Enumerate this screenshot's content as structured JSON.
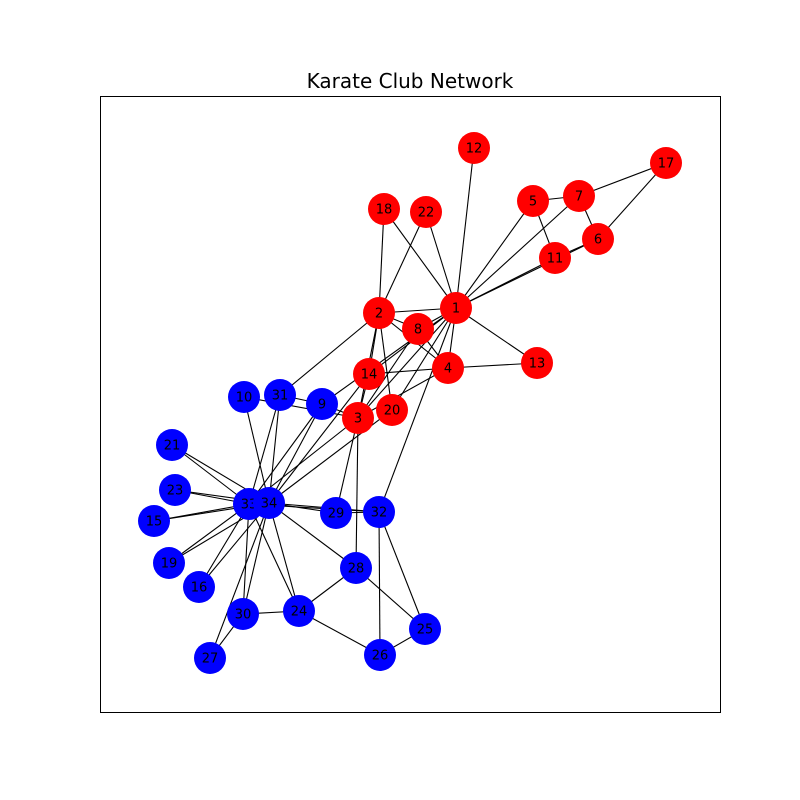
{
  "title": "Karate Club Network",
  "colors": {
    "group_a": "#ff0000",
    "group_b": "#0000ff",
    "edge": "#000000",
    "frame": "#000000",
    "background": "#ffffff"
  },
  "nodes": [
    {
      "id": "1",
      "group": "a"
    },
    {
      "id": "2",
      "group": "a"
    },
    {
      "id": "3",
      "group": "a"
    },
    {
      "id": "4",
      "group": "a"
    },
    {
      "id": "5",
      "group": "a"
    },
    {
      "id": "6",
      "group": "a"
    },
    {
      "id": "7",
      "group": "a"
    },
    {
      "id": "8",
      "group": "a"
    },
    {
      "id": "9",
      "group": "b"
    },
    {
      "id": "10",
      "group": "b"
    },
    {
      "id": "11",
      "group": "a"
    },
    {
      "id": "12",
      "group": "a"
    },
    {
      "id": "13",
      "group": "a"
    },
    {
      "id": "14",
      "group": "a"
    },
    {
      "id": "15",
      "group": "b"
    },
    {
      "id": "16",
      "group": "b"
    },
    {
      "id": "17",
      "group": "a"
    },
    {
      "id": "18",
      "group": "a"
    },
    {
      "id": "19",
      "group": "b"
    },
    {
      "id": "20",
      "group": "a"
    },
    {
      "id": "21",
      "group": "b"
    },
    {
      "id": "22",
      "group": "a"
    },
    {
      "id": "23",
      "group": "b"
    },
    {
      "id": "24",
      "group": "b"
    },
    {
      "id": "25",
      "group": "b"
    },
    {
      "id": "26",
      "group": "b"
    },
    {
      "id": "27",
      "group": "b"
    },
    {
      "id": "28",
      "group": "b"
    },
    {
      "id": "29",
      "group": "b"
    },
    {
      "id": "30",
      "group": "b"
    },
    {
      "id": "31",
      "group": "b"
    },
    {
      "id": "32",
      "group": "b"
    },
    {
      "id": "33",
      "group": "b"
    },
    {
      "id": "34",
      "group": "b"
    }
  ],
  "edges": [
    [
      "1",
      "2"
    ],
    [
      "1",
      "3"
    ],
    [
      "1",
      "4"
    ],
    [
      "1",
      "5"
    ],
    [
      "1",
      "6"
    ],
    [
      "1",
      "7"
    ],
    [
      "1",
      "8"
    ],
    [
      "1",
      "9"
    ],
    [
      "1",
      "11"
    ],
    [
      "1",
      "12"
    ],
    [
      "1",
      "13"
    ],
    [
      "1",
      "14"
    ],
    [
      "1",
      "18"
    ],
    [
      "1",
      "20"
    ],
    [
      "1",
      "22"
    ],
    [
      "1",
      "32"
    ],
    [
      "2",
      "3"
    ],
    [
      "2",
      "4"
    ],
    [
      "2",
      "8"
    ],
    [
      "2",
      "14"
    ],
    [
      "2",
      "18"
    ],
    [
      "2",
      "20"
    ],
    [
      "2",
      "22"
    ],
    [
      "2",
      "31"
    ],
    [
      "3",
      "4"
    ],
    [
      "3",
      "8"
    ],
    [
      "3",
      "9"
    ],
    [
      "3",
      "10"
    ],
    [
      "3",
      "14"
    ],
    [
      "3",
      "28"
    ],
    [
      "3",
      "29"
    ],
    [
      "3",
      "33"
    ],
    [
      "4",
      "8"
    ],
    [
      "4",
      "13"
    ],
    [
      "4",
      "14"
    ],
    [
      "5",
      "7"
    ],
    [
      "5",
      "11"
    ],
    [
      "6",
      "7"
    ],
    [
      "6",
      "11"
    ],
    [
      "6",
      "17"
    ],
    [
      "7",
      "17"
    ],
    [
      "9",
      "31"
    ],
    [
      "9",
      "33"
    ],
    [
      "9",
      "34"
    ],
    [
      "10",
      "34"
    ],
    [
      "14",
      "34"
    ],
    [
      "15",
      "33"
    ],
    [
      "15",
      "34"
    ],
    [
      "16",
      "33"
    ],
    [
      "16",
      "34"
    ],
    [
      "19",
      "33"
    ],
    [
      "19",
      "34"
    ],
    [
      "20",
      "34"
    ],
    [
      "21",
      "33"
    ],
    [
      "21",
      "34"
    ],
    [
      "23",
      "33"
    ],
    [
      "23",
      "34"
    ],
    [
      "24",
      "26"
    ],
    [
      "24",
      "28"
    ],
    [
      "24",
      "30"
    ],
    [
      "24",
      "33"
    ],
    [
      "24",
      "34"
    ],
    [
      "25",
      "26"
    ],
    [
      "25",
      "28"
    ],
    [
      "25",
      "32"
    ],
    [
      "26",
      "32"
    ],
    [
      "27",
      "30"
    ],
    [
      "27",
      "34"
    ],
    [
      "28",
      "34"
    ],
    [
      "29",
      "32"
    ],
    [
      "29",
      "34"
    ],
    [
      "30",
      "33"
    ],
    [
      "30",
      "34"
    ],
    [
      "31",
      "33"
    ],
    [
      "31",
      "34"
    ],
    [
      "32",
      "33"
    ],
    [
      "32",
      "34"
    ],
    [
      "33",
      "34"
    ]
  ]
}
